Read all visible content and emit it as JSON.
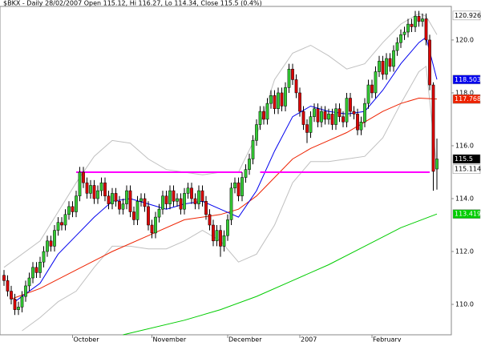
{
  "chart_data": {
    "type": "candlestick",
    "title": "$BKX - Daily 28/02/2007 Open 115.12, Hi 116.27, Lo 114.34, Close 115.5 (0.4%)",
    "categories": [
      null,
      null,
      null,
      null,
      null,
      null,
      null,
      null,
      null,
      null,
      null,
      null,
      null,
      null,
      null,
      null,
      null,
      null,
      null,
      "October",
      null,
      null,
      null,
      null,
      null,
      null,
      null,
      null,
      null,
      null,
      null,
      null,
      null,
      null,
      null,
      null,
      null,
      null,
      null,
      null,
      null,
      "November",
      null,
      null,
      null,
      null,
      null,
      null,
      null,
      null,
      null,
      null,
      null,
      null,
      null,
      null,
      null,
      null,
      null,
      null,
      null,
      null,
      "December",
      null,
      null,
      null,
      null,
      null,
      null,
      null,
      null,
      null,
      null,
      null,
      null,
      null,
      null,
      null,
      null,
      null,
      null,
      null,
      "2007",
      null,
      null,
      null,
      null,
      null,
      null,
      null,
      null,
      null,
      null,
      null,
      null,
      null,
      null,
      null,
      null,
      null,
      null,
      null,
      "February",
      null,
      null,
      null,
      null,
      null,
      null,
      null,
      null,
      null,
      null,
      null,
      null,
      null,
      null,
      null,
      null,
      null,
      null
    ],
    "open": [
      111.1,
      110.9,
      110.5,
      110.2,
      109.8,
      109.9,
      110.3,
      110.7,
      111.0,
      111.4,
      111.2,
      111.6,
      112.0,
      112.4,
      112.2,
      112.8,
      113.1,
      113.0,
      113.4,
      113.7,
      113.5,
      114.1,
      115.0,
      114.6,
      114.2,
      114.5,
      114.0,
      114.3,
      114.6,
      114.1,
      113.8,
      114.2,
      113.9,
      113.6,
      113.8,
      114.3,
      113.5,
      113.2,
      113.9,
      114.0,
      113.7,
      113.0,
      112.7,
      113.3,
      113.6,
      114.1,
      113.8,
      114.3,
      113.9,
      114.0,
      113.6,
      114.2,
      114.4,
      114.0,
      113.8,
      114.3,
      113.9,
      113.4,
      113.0,
      112.4,
      112.8,
      112.2,
      112.6,
      113.2,
      114.4,
      114.6,
      114.1,
      114.8,
      115.1,
      115.5,
      116.2,
      116.8,
      117.3,
      117.0,
      117.6,
      117.9,
      117.4,
      118.0,
      117.5,
      118.2,
      118.9,
      118.5,
      118.0,
      117.3,
      116.8,
      116.5,
      117.1,
      117.4,
      116.9,
      117.3,
      117.0,
      117.2,
      116.8,
      117.4,
      117.1,
      116.9,
      117.8,
      117.3,
      117.2,
      116.6,
      116.9,
      117.6,
      118.3,
      118.0,
      118.8,
      119.2,
      118.7,
      119.3,
      119.0,
      119.6,
      119.9,
      120.2,
      120.3,
      120.6,
      120.5,
      120.9,
      120.7,
      120.8,
      120.0,
      118.3,
      115.12
    ],
    "high": [
      111.3,
      111.1,
      110.7,
      110.4,
      110.1,
      110.5,
      110.9,
      111.2,
      111.6,
      111.6,
      111.8,
      112.2,
      112.6,
      112.6,
      113.0,
      113.3,
      113.3,
      113.6,
      113.9,
      113.9,
      114.3,
      115.2,
      115.2,
      114.8,
      114.7,
      114.7,
      114.5,
      114.8,
      114.8,
      114.3,
      114.4,
      114.4,
      114.1,
      114.0,
      114.5,
      114.5,
      113.7,
      114.1,
      114.2,
      114.2,
      113.9,
      113.2,
      113.5,
      113.8,
      114.3,
      114.3,
      114.5,
      114.5,
      114.2,
      114.2,
      114.4,
      114.6,
      114.6,
      114.2,
      114.5,
      114.5,
      114.1,
      113.6,
      113.2,
      113.0,
      113.0,
      112.8,
      113.4,
      114.6,
      114.8,
      114.8,
      115.0,
      115.3,
      115.7,
      116.4,
      117.0,
      117.5,
      117.5,
      117.8,
      118.1,
      118.1,
      118.2,
      118.2,
      118.4,
      119.1,
      119.1,
      118.7,
      118.2,
      117.5,
      117.0,
      117.3,
      117.6,
      117.6,
      117.5,
      117.5,
      117.4,
      117.4,
      117.6,
      117.6,
      117.3,
      118.0,
      118.0,
      117.5,
      117.4,
      117.1,
      117.8,
      118.5,
      118.5,
      119.0,
      119.4,
      119.4,
      119.5,
      119.5,
      119.8,
      120.1,
      120.4,
      120.5,
      120.8,
      120.8,
      121.1,
      121.1,
      121.0,
      121.0,
      120.2,
      118.4,
      116.27
    ],
    "low": [
      110.7,
      110.3,
      110.0,
      109.6,
      109.6,
      109.7,
      110.1,
      110.5,
      110.8,
      111.0,
      111.0,
      111.4,
      111.8,
      112.0,
      112.0,
      112.6,
      112.8,
      112.8,
      113.2,
      113.3,
      113.3,
      113.9,
      114.4,
      114.0,
      114.0,
      113.8,
      113.8,
      114.1,
      113.9,
      113.6,
      113.6,
      113.7,
      113.4,
      113.4,
      113.6,
      113.3,
      113.0,
      113.0,
      113.7,
      113.5,
      112.8,
      112.5,
      112.5,
      113.1,
      113.4,
      113.6,
      113.6,
      113.7,
      113.7,
      113.4,
      113.4,
      114.0,
      113.8,
      113.6,
      113.6,
      113.7,
      113.2,
      112.8,
      112.2,
      112.2,
      111.8,
      112.0,
      112.4,
      113.0,
      114.2,
      113.9,
      113.9,
      114.6,
      114.9,
      115.3,
      116.0,
      116.6,
      116.8,
      116.8,
      117.4,
      117.2,
      117.2,
      117.3,
      117.3,
      118.0,
      118.3,
      117.8,
      117.1,
      116.6,
      116.1,
      116.3,
      116.9,
      116.7,
      116.7,
      116.8,
      116.8,
      116.6,
      116.6,
      116.9,
      116.7,
      116.7,
      117.1,
      117.0,
      116.4,
      116.4,
      116.7,
      117.4,
      117.8,
      117.8,
      118.6,
      118.5,
      118.5,
      118.8,
      118.8,
      119.4,
      119.7,
      120.0,
      120.1,
      120.3,
      120.3,
      120.5,
      120.5,
      119.8,
      118.1,
      114.3,
      114.34
    ],
    "close": [
      110.9,
      110.5,
      110.2,
      109.8,
      109.9,
      110.3,
      110.7,
      111.0,
      111.4,
      111.2,
      111.6,
      112.0,
      112.4,
      112.2,
      112.8,
      113.1,
      113.0,
      113.4,
      113.7,
      113.5,
      114.1,
      115.0,
      114.6,
      114.2,
      114.5,
      114.0,
      114.3,
      114.6,
      114.1,
      113.8,
      114.2,
      113.9,
      113.6,
      113.8,
      114.3,
      113.5,
      113.2,
      113.9,
      114.0,
      113.7,
      113.0,
      112.7,
      113.3,
      113.6,
      114.1,
      113.8,
      114.3,
      113.9,
      114.0,
      113.6,
      114.2,
      114.4,
      114.0,
      113.8,
      114.3,
      113.9,
      113.4,
      113.0,
      112.4,
      112.8,
      112.2,
      112.6,
      113.2,
      114.4,
      114.6,
      114.1,
      114.8,
      115.1,
      115.5,
      116.2,
      116.8,
      117.3,
      117.0,
      117.6,
      117.9,
      117.4,
      118.0,
      117.5,
      118.2,
      118.9,
      118.5,
      118.0,
      117.3,
      116.8,
      116.5,
      117.1,
      117.4,
      116.9,
      117.3,
      117.0,
      117.2,
      116.8,
      117.4,
      117.1,
      116.9,
      117.8,
      117.3,
      117.2,
      116.6,
      116.9,
      117.6,
      118.3,
      118.0,
      118.8,
      119.2,
      118.7,
      119.3,
      119.0,
      119.6,
      119.9,
      120.2,
      120.3,
      120.6,
      120.5,
      120.9,
      120.7,
      120.8,
      120.0,
      118.3,
      115.03,
      115.5
    ],
    "up_color": "#33cc33",
    "down_color": "#dd0000",
    "overlays": [
      {
        "color": "#c0c0c0",
        "x": [
          0,
          10,
          20,
          25,
          30,
          35,
          40,
          45,
          50,
          55,
          60,
          65,
          70,
          75,
          80,
          85,
          90,
          95,
          100,
          105,
          110,
          115,
          117,
          120
        ],
        "values": [
          111.4,
          112.4,
          114.6,
          115.6,
          116.2,
          116.1,
          115.5,
          115.1,
          115.0,
          114.9,
          115.0,
          115.0,
          116.4,
          118.5,
          119.5,
          119.8,
          119.4,
          118.9,
          119.1,
          119.9,
          120.6,
          121.0,
          120.9,
          120.2
        ]
      },
      {
        "color": "#c0c0c0",
        "x": [
          5,
          10,
          15,
          20,
          25,
          30,
          35,
          40,
          45,
          50,
          55,
          60,
          65,
          70,
          75,
          80,
          85,
          90,
          95,
          100,
          105,
          110,
          115,
          117,
          120
        ],
        "values": [
          109.0,
          109.5,
          110.1,
          110.5,
          111.4,
          112.2,
          112.2,
          112.1,
          112.1,
          112.4,
          112.8,
          112.4,
          111.6,
          111.9,
          113.0,
          114.6,
          115.4,
          115.4,
          115.5,
          115.6,
          116.3,
          117.6,
          118.8,
          119.0,
          115.114
        ]
      },
      {
        "color": "#00cc00",
        "x": [
          33,
          50,
          60,
          70,
          80,
          90,
          100,
          110,
          120
        ],
        "values": [
          108.85,
          109.4,
          109.8,
          110.3,
          110.9,
          111.5,
          112.2,
          112.9,
          113.419
        ]
      },
      {
        "color": "#ee2200",
        "x": [
          2,
          10,
          20,
          30,
          40,
          50,
          60,
          65,
          70,
          75,
          80,
          85,
          90,
          95,
          100,
          105,
          110,
          115,
          120
        ],
        "values": [
          110.2,
          110.6,
          111.3,
          112.0,
          112.6,
          113.2,
          113.4,
          113.6,
          114.1,
          114.8,
          115.5,
          115.9,
          116.2,
          116.5,
          116.9,
          117.3,
          117.6,
          117.8,
          117.768
        ]
      },
      {
        "color": "#0000ee",
        "x": [
          3,
          10,
          15,
          20,
          25,
          30,
          35,
          40,
          45,
          50,
          55,
          60,
          65,
          70,
          75,
          80,
          85,
          90,
          95,
          100,
          105,
          110,
          115,
          117,
          120
        ],
        "values": [
          110.1,
          110.8,
          111.9,
          112.6,
          113.3,
          113.9,
          114.0,
          113.8,
          113.6,
          113.8,
          113.9,
          113.6,
          113.3,
          114.3,
          115.8,
          117.1,
          117.5,
          117.3,
          117.2,
          117.3,
          118.1,
          119.1,
          119.9,
          120.1,
          118.503
        ]
      }
    ],
    "hlines": [
      {
        "color": "#ff00ff",
        "x": [
          20,
          66
        ],
        "value": 115.0
      },
      {
        "color": "#ff00ff",
        "x": [
          71,
          118
        ],
        "value": 115.0
      }
    ],
    "price_boxes": [
      {
        "value": 120.926,
        "label": "120.926",
        "color": "#ffffff",
        "text_color": "#000000"
      },
      {
        "value": 118.503,
        "label": "118.503",
        "color": "#0000ee",
        "text_color": "#ffffff"
      },
      {
        "value": 117.768,
        "label": "117.768",
        "color": "#ee2200",
        "text_color": "#ffffff"
      },
      {
        "value": 115.5,
        "label": "115.5",
        "color": "#000000",
        "text_color": "#ffffff"
      },
      {
        "value": 115.114,
        "label": "115.114",
        "color": "#ffffff",
        "text_color": "#000000"
      },
      {
        "value": 113.419,
        "label": "113.419",
        "color": "#00cc00",
        "text_color": "#ffffff"
      }
    ],
    "ylim": [
      108.85,
      121.27
    ],
    "yticks": [
      {
        "value": 110,
        "label": "110.0"
      },
      {
        "value": 112,
        "label": "112.0"
      },
      {
        "value": 114,
        "label": "114.0"
      },
      {
        "value": 116,
        "label": "116.0"
      },
      {
        "value": 118,
        "label": "118.0"
      },
      {
        "value": 120,
        "label": "120.0"
      }
    ]
  }
}
